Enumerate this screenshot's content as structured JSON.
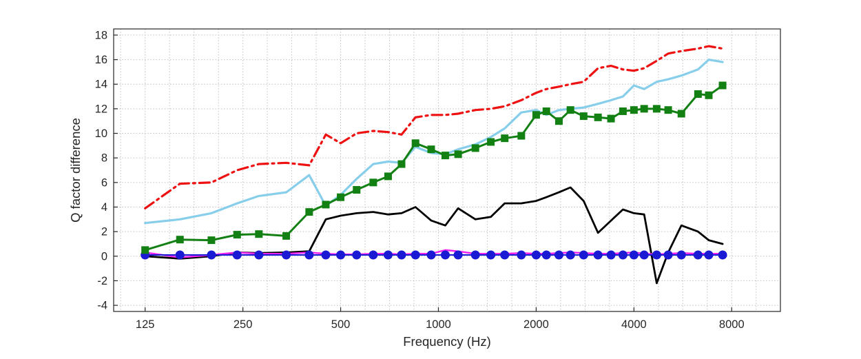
{
  "figure": {
    "background": "#ffffff"
  },
  "chart_data": {
    "type": "line",
    "title": "",
    "xlabel": "Frequency (Hz)",
    "ylabel": "Q factor difference",
    "xscale": "log",
    "grid": true,
    "legend": "none",
    "xlim": [
      100,
      11300
    ],
    "ylim": [
      -4.5,
      18.5
    ],
    "xticks": [
      125,
      250,
      500,
      1000,
      2000,
      4000,
      8000
    ],
    "yticks": [
      -4,
      -2,
      0,
      2,
      4,
      6,
      8,
      10,
      12,
      14,
      16,
      18
    ],
    "axis_color": "#262626",
    "grid_color": "#bfbfbf",
    "x": [
      125,
      160,
      200,
      240,
      280,
      340,
      400,
      450,
      500,
      560,
      630,
      700,
      770,
      850,
      950,
      1050,
      1150,
      1300,
      1450,
      1600,
      1800,
      2000,
      2150,
      2350,
      2550,
      2800,
      3100,
      3400,
      3700,
      4000,
      4300,
      4700,
      5100,
      5600,
      6300,
      6800,
      7500
    ],
    "series": [
      {
        "name": "black-solid",
        "color": "#000000",
        "style": "solid",
        "width": 2.8,
        "marker": "none",
        "values": [
          0.0,
          -0.2,
          0.0,
          0.3,
          0.25,
          0.3,
          0.4,
          3.0,
          3.3,
          3.5,
          3.6,
          3.4,
          3.5,
          4.0,
          2.9,
          2.5,
          3.9,
          3.0,
          3.2,
          4.3,
          4.3,
          4.5,
          4.8,
          5.2,
          5.6,
          4.5,
          1.9,
          2.9,
          3.8,
          3.5,
          3.4,
          -2.2,
          0.3,
          2.5,
          2.0,
          1.3,
          1.0
        ]
      },
      {
        "name": "magenta-solid",
        "color": "#ee22ee",
        "style": "solid",
        "width": 2.5,
        "marker": "none",
        "values": [
          0.3,
          -0.1,
          0.1,
          0.3,
          0.2,
          0.2,
          0.3,
          0.2,
          0.15,
          0.15,
          0.2,
          0.2,
          0.15,
          0.2,
          0.2,
          0.5,
          0.4,
          0.2,
          0.2,
          0.2,
          0.25,
          0.2,
          0.2,
          0.25,
          0.3,
          0.25,
          0.2,
          0.2,
          0.25,
          0.3,
          0.2,
          0.15,
          0.2,
          0.25,
          0.2,
          0.2,
          0.2
        ]
      },
      {
        "name": "blue-circles",
        "color": "#1a1ad4",
        "style": "solid",
        "width": 2,
        "marker": "circle",
        "values": [
          0.1,
          0.1,
          0.1,
          0.1,
          0.1,
          0.1,
          0.1,
          0.1,
          0.1,
          0.1,
          0.1,
          0.1,
          0.1,
          0.1,
          0.1,
          0.1,
          0.1,
          0.1,
          0.1,
          0.1,
          0.1,
          0.1,
          0.1,
          0.1,
          0.1,
          0.1,
          0.1,
          0.1,
          0.1,
          0.1,
          0.1,
          0.1,
          0.1,
          0.1,
          0.1,
          0.1,
          0.1
        ]
      },
      {
        "name": "sky-blue-solid",
        "color": "#87ceeb",
        "style": "solid",
        "width": 3.2,
        "marker": "none",
        "values": [
          2.7,
          3.0,
          3.5,
          4.3,
          4.9,
          5.2,
          6.6,
          4.1,
          5.0,
          6.3,
          7.5,
          7.7,
          7.6,
          8.9,
          8.4,
          8.3,
          8.7,
          9.1,
          9.7,
          10.4,
          11.7,
          11.9,
          11.5,
          11.9,
          12.0,
          12.1,
          12.4,
          12.7,
          13.0,
          13.9,
          13.6,
          14.2,
          14.4,
          14.7,
          15.2,
          16.0,
          15.8
        ]
      },
      {
        "name": "green-squares",
        "color": "#128012",
        "style": "solid",
        "width": 3,
        "marker": "square",
        "values": [
          0.5,
          1.35,
          1.3,
          1.75,
          1.8,
          1.65,
          3.6,
          4.2,
          4.8,
          5.4,
          6.0,
          6.5,
          7.5,
          9.2,
          8.7,
          8.2,
          8.3,
          8.8,
          9.3,
          9.6,
          9.8,
          11.5,
          11.8,
          11.0,
          11.9,
          11.4,
          11.3,
          11.2,
          11.8,
          11.9,
          12.0,
          12.0,
          11.9,
          11.6,
          13.2,
          13.1,
          13.9
        ]
      },
      {
        "name": "red-dash-dot",
        "color": "#ee1111",
        "style": "dashdot",
        "width": 3.2,
        "marker": "none",
        "values": [
          3.9,
          5.9,
          6.0,
          7.0,
          7.5,
          7.6,
          7.4,
          9.9,
          9.2,
          10.0,
          10.2,
          10.1,
          9.9,
          11.3,
          11.5,
          11.5,
          11.6,
          11.9,
          12.0,
          12.2,
          12.7,
          13.3,
          13.6,
          13.8,
          14.0,
          14.2,
          15.3,
          15.5,
          15.2,
          15.1,
          15.3,
          15.9,
          16.5,
          16.7,
          16.9,
          17.1,
          16.9
        ]
      }
    ]
  }
}
